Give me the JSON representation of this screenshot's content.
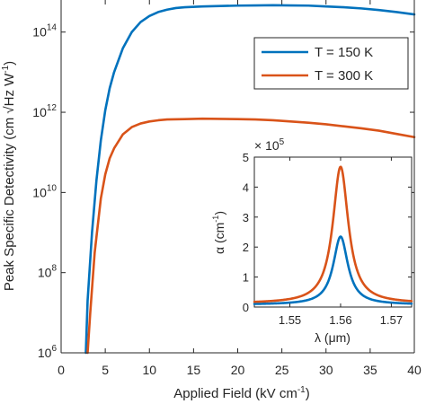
{
  "chart_data": [
    {
      "type": "line",
      "xlabel": "Applied Field (kV cm",
      "xlabel_sup": "-1",
      "xlabel_suffix": ")",
      "ylabel": "Peak Specific Detectivity (cm √Hz W",
      "ylabel_sup": "-1",
      "ylabel_suffix": ")",
      "xlim": [
        0,
        40
      ],
      "ylim_log10": [
        6,
        14.8
      ],
      "yscale": "log",
      "xticks": [
        0,
        5,
        10,
        15,
        20,
        25,
        30,
        35,
        40
      ],
      "yticks": [
        {
          "base": "10",
          "exp": "6",
          "value": 6
        },
        {
          "base": "10",
          "exp": "8",
          "value": 8
        },
        {
          "base": "10",
          "exp": "10",
          "value": 10
        },
        {
          "base": "10",
          "exp": "12",
          "value": 12
        },
        {
          "base": "10",
          "exp": "14",
          "value": 14
        }
      ],
      "legend_position": "top-right",
      "series": [
        {
          "name": "T = 150 K",
          "color": "#0072BD",
          "x": [
            2.8,
            3.0,
            3.5,
            4.0,
            4.5,
            5.0,
            5.5,
            6.0,
            7.0,
            8.0,
            9.0,
            10.0,
            11.0,
            12.0,
            13.0,
            14.0,
            16.0,
            18.0,
            20.0,
            22.0,
            24.0,
            26.0,
            28.0,
            30.0,
            32.0,
            34.0,
            36.0,
            38.0,
            40.0
          ],
          "log10_y": [
            6.0,
            7.3,
            9.0,
            10.3,
            11.3,
            12.05,
            12.6,
            13.0,
            13.6,
            14.0,
            14.25,
            14.4,
            14.5,
            14.56,
            14.6,
            14.62,
            14.64,
            14.65,
            14.66,
            14.665,
            14.67,
            14.665,
            14.66,
            14.64,
            14.62,
            14.59,
            14.55,
            14.5,
            14.44
          ]
        },
        {
          "name": "T = 300 K",
          "color": "#D95319",
          "x": [
            3.0,
            3.3,
            3.8,
            4.5,
            5.0,
            5.5,
            6.0,
            7.0,
            8.0,
            9.0,
            10.0,
            11.0,
            12.0,
            14.0,
            16.0,
            18.0,
            20.0,
            22.0,
            24.0,
            26.0,
            28.0,
            30.0,
            32.0,
            34.0,
            36.0,
            38.0,
            40.0
          ],
          "log10_y": [
            6.0,
            7.0,
            8.5,
            9.85,
            10.45,
            10.85,
            11.1,
            11.45,
            11.63,
            11.72,
            11.77,
            11.8,
            11.82,
            11.83,
            11.84,
            11.835,
            11.83,
            11.82,
            11.8,
            11.77,
            11.74,
            11.7,
            11.65,
            11.6,
            11.54,
            11.46,
            11.38
          ]
        }
      ]
    },
    {
      "type": "line",
      "xlabel": "λ (μm)",
      "ylabel": "α (cm",
      "ylabel_sup": "-1",
      "ylabel_suffix": ")",
      "scale_prefix": "× 10",
      "scale_exp": "5",
      "xlim": [
        1.543,
        1.574
      ],
      "ylim": [
        0,
        5
      ],
      "xticks": [
        {
          "label": "1.55",
          "value": 1.55
        },
        {
          "label": "1.56",
          "value": 1.56
        },
        {
          "label": "1.57",
          "value": 1.57
        }
      ],
      "yticks": [
        {
          "label": "0",
          "value": 0
        },
        {
          "label": "1",
          "value": 1
        },
        {
          "label": "2",
          "value": 2
        },
        {
          "label": "3",
          "value": 3
        },
        {
          "label": "4",
          "value": 4
        },
        {
          "label": "5",
          "value": 5
        }
      ],
      "series": [
        {
          "color": "#0072BD",
          "center": 1.56,
          "peak": 2.35,
          "hwhm": 0.00175,
          "baseline": 0.08
        },
        {
          "color": "#D95319",
          "center": 1.56,
          "peak": 4.68,
          "hwhm": 0.00185,
          "baseline": 0.12
        }
      ]
    }
  ]
}
